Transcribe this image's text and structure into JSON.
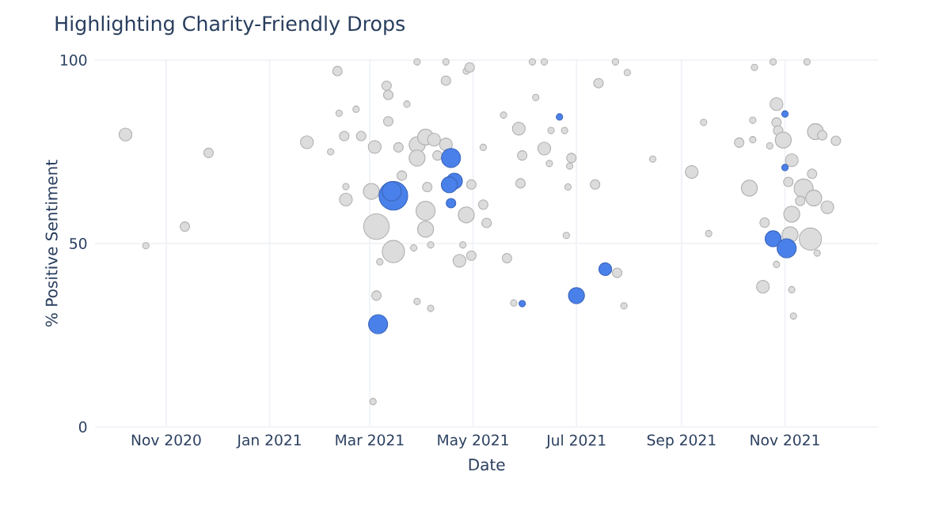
{
  "chart_data": {
    "type": "bubble",
    "title": "Highlighting Charity-Friendly Drops",
    "xlabel": "Date",
    "ylabel": "% Positive Sentiment",
    "xlim": [
      "2020-09-20",
      "2021-12-26"
    ],
    "xticks": [
      {
        "value": "2020-11-01",
        "label": "Nov 2020"
      },
      {
        "value": "2021-01-01",
        "label": "Jan 2021"
      },
      {
        "value": "2021-03-01",
        "label": "Mar 2021"
      },
      {
        "value": "2021-05-01",
        "label": "May 2021"
      },
      {
        "value": "2021-07-01",
        "label": "Jul 2021"
      },
      {
        "value": "2021-09-01",
        "label": "Sep 2021"
      },
      {
        "value": "2021-11-01",
        "label": "Nov 2021"
      }
    ],
    "ylim": [
      0,
      100
    ],
    "yticks": [
      0,
      50,
      100
    ],
    "grid": true,
    "series": [
      {
        "color": "#dcdcdc",
        "x": [
          "2020-10-08",
          "2020-10-20",
          "2020-11-12",
          "2020-11-26",
          "2021-01-23",
          "2021-02-10",
          "2021-02-06",
          "2021-02-11",
          "2021-02-21",
          "2021-02-14",
          "2021-02-24",
          "2021-02-15",
          "2021-02-15",
          "2021-03-05",
          "2021-03-15",
          "2021-03-05",
          "2021-03-03",
          "2021-03-11",
          "2021-03-12",
          "2021-03-12",
          "2021-03-04",
          "2021-03-02",
          "2021-03-07",
          "2021-03-18",
          "2021-03-29",
          "2021-04-03",
          "2021-04-08",
          "2021-03-29",
          "2021-03-23",
          "2021-04-15",
          "2021-04-27",
          "2021-04-29",
          "2021-04-15",
          "2021-04-10",
          "2021-03-20",
          "2021-04-04",
          "2021-04-30",
          "2021-04-03",
          "2021-04-27",
          "2021-05-07",
          "2021-05-09",
          "2021-04-03",
          "2021-03-27",
          "2021-04-06",
          "2021-04-25",
          "2021-04-23",
          "2021-04-30",
          "2021-03-29",
          "2021-04-06",
          "2021-05-07",
          "2021-05-21",
          "2021-05-19",
          "2021-05-28",
          "2021-05-30",
          "2021-06-07",
          "2021-06-12",
          "2021-06-15",
          "2021-06-16",
          "2021-06-24",
          "2021-06-28",
          "2021-06-27",
          "2021-06-26",
          "2021-07-12",
          "2021-07-14",
          "2021-07-31",
          "2021-05-29",
          "2021-06-25",
          "2021-05-25",
          "2021-07-25",
          "2021-07-29",
          "2021-06-05",
          "2021-06-12",
          "2021-07-24",
          "2021-03-29",
          "2021-04-15",
          "2021-08-15",
          "2021-09-07",
          "2021-09-14",
          "2021-09-17",
          "2021-10-14",
          "2021-11-14",
          "2021-10-25",
          "2021-10-27",
          "2021-10-13",
          "2021-10-27",
          "2021-10-28",
          "2021-10-05",
          "2021-10-13",
          "2021-10-23",
          "2021-10-31",
          "2021-11-19",
          "2021-11-23",
          "2021-12-01",
          "2021-11-05",
          "2021-11-17",
          "2021-10-11",
          "2021-11-03",
          "2021-11-12",
          "2021-11-18",
          "2021-11-10",
          "2021-11-26",
          "2021-11-05",
          "2021-10-20",
          "2021-11-04",
          "2021-11-16",
          "2021-11-20",
          "2021-10-27",
          "2021-10-19",
          "2021-11-05",
          "2021-11-06"
        ],
        "values": [
          79.7,
          49.4,
          54.6,
          74.7,
          77.6,
          97,
          75,
          85.5,
          86.6,
          79.3,
          79.3,
          62,
          65.5,
          54.6,
          47.8,
          35.8,
          6.9,
          93,
          90.5,
          83.3,
          76.3,
          64.2,
          45,
          76.2,
          76.9,
          79,
          78.3,
          73.3,
          88,
          94.4,
          97,
          98,
          77,
          74,
          68.5,
          65.4,
          66.1,
          58.9,
          57.8,
          60.6,
          55.6,
          53.9,
          48.8,
          49.6,
          49.6,
          45.3,
          46.7,
          34.2,
          32.3,
          76.2,
          46,
          85,
          81.3,
          74,
          89.8,
          75.9,
          71.8,
          80.8,
          80.8,
          73.3,
          71.1,
          65.4,
          66.1,
          93.7,
          96.6,
          66.4,
          52.2,
          33.8,
          42,
          33,
          99.5,
          99.5,
          99.5,
          99.5,
          99.5,
          73,
          69.5,
          83,
          52.7,
          98,
          99.5,
          99.5,
          88,
          83.6,
          83,
          80.8,
          77.5,
          78.3,
          76.6,
          78.2,
          80.5,
          79.5,
          78,
          72.7,
          69,
          65.1,
          66.8,
          65,
          62.4,
          61.6,
          59.9,
          58,
          55.7,
          52.4,
          51.2,
          47.4,
          44.3,
          38.2,
          37.4,
          30.2
        ],
        "sizes": [
          0.2,
          0.05,
          0.11,
          0.11,
          0.2,
          0.11,
          0.05,
          0.05,
          0.05,
          0.11,
          0.11,
          0.2,
          0.05,
          0.79,
          0.6,
          0.11,
          0.05,
          0.11,
          0.11,
          0.11,
          0.2,
          0.31,
          0.05,
          0.11,
          0.31,
          0.31,
          0.2,
          0.31,
          0.05,
          0.11,
          0.05,
          0.11,
          0.2,
          0.11,
          0.11,
          0.11,
          0.11,
          0.44,
          0.31,
          0.11,
          0.11,
          0.31,
          0.05,
          0.05,
          0.05,
          0.2,
          0.11,
          0.05,
          0.05,
          0.05,
          0.11,
          0.05,
          0.2,
          0.11,
          0.05,
          0.2,
          0.05,
          0.05,
          0.05,
          0.11,
          0.05,
          0.05,
          0.11,
          0.11,
          0.05,
          0.11,
          0.05,
          0.05,
          0.11,
          0.05,
          0.05,
          0.05,
          0.05,
          0.05,
          0.05,
          0.05,
          0.2,
          0.05,
          0.05,
          0.05,
          0.05,
          0.05,
          0.2,
          0.05,
          0.11,
          0.11,
          0.11,
          0.05,
          0.05,
          0.31,
          0.31,
          0.11,
          0.11,
          0.2,
          0.11,
          0.31,
          0.11,
          0.44,
          0.31,
          0.11,
          0.2,
          0.31,
          0.11,
          0.31,
          0.6,
          0.05,
          0.05,
          0.2,
          0.05,
          0.05
        ]
      },
      {
        "color": "#4a80ea",
        "x": [
          "2021-03-15",
          "2021-03-14",
          "2021-03-06",
          "2021-04-18",
          "2021-04-20",
          "2021-04-17",
          "2021-04-18",
          "2021-05-30",
          "2021-06-21",
          "2021-07-01",
          "2021-07-18",
          "2021-11-01",
          "2021-11-01",
          "2021-10-25",
          "2021-11-02"
        ],
        "values": [
          63,
          64.2,
          28,
          73.3,
          67,
          66,
          61,
          33.6,
          84.5,
          35.8,
          43,
          85.3,
          70.7,
          51.3,
          48.7
        ],
        "sizes": [
          1,
          0.44,
          0.44,
          0.44,
          0.31,
          0.31,
          0.11,
          0.05,
          0.05,
          0.31,
          0.2,
          0.05,
          0.05,
          0.31,
          0.44
        ]
      }
    ]
  }
}
